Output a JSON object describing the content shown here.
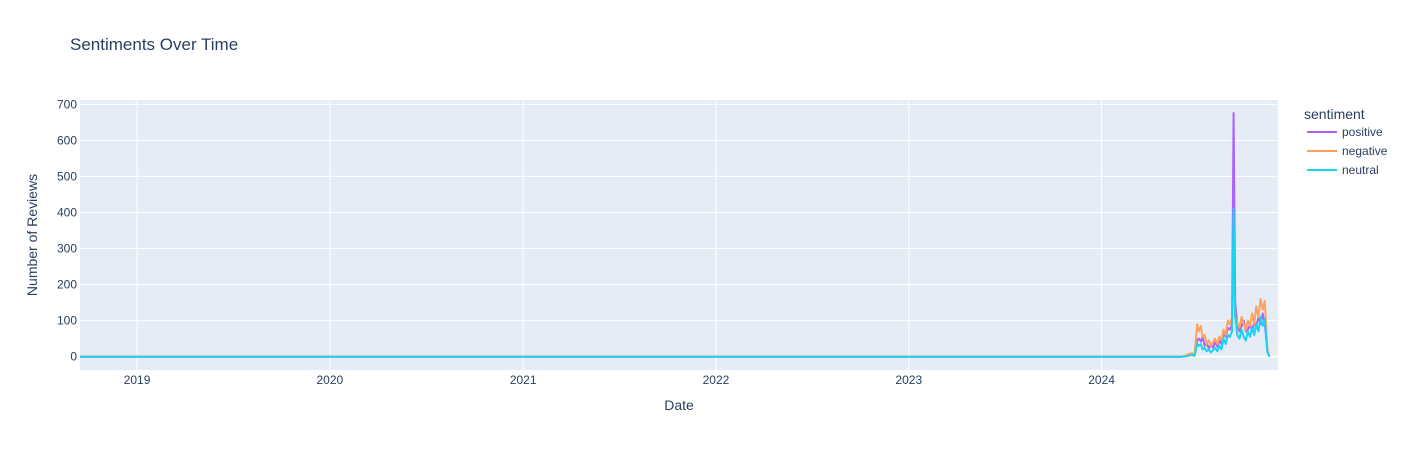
{
  "chart_data": {
    "type": "line",
    "title": "Sentiments Over Time",
    "xlabel": "Date",
    "ylabel": "Number of Reviews",
    "x_range": [
      "2018-09-15",
      "2024-11-30"
    ],
    "ylim": [
      -37,
      712
    ],
    "x_ticks": [
      {
        "date": "2019-01-01",
        "label": "2019"
      },
      {
        "date": "2020-01-01",
        "label": "2020"
      },
      {
        "date": "2021-01-01",
        "label": "2021"
      },
      {
        "date": "2022-01-01",
        "label": "2022"
      },
      {
        "date": "2023-01-01",
        "label": "2023"
      },
      {
        "date": "2024-01-01",
        "label": "2024"
      }
    ],
    "y_ticks": [
      0,
      100,
      200,
      300,
      400,
      500,
      600,
      700
    ],
    "grid": true,
    "plot_bg": "#e5ecf6",
    "legend": {
      "title": "sentiment",
      "placement": "right"
    },
    "series": [
      {
        "name": "positive",
        "color": "#ab63fa",
        "points": [
          [
            "2018-09-15",
            0
          ],
          [
            "2024-06-01",
            0
          ],
          [
            "2024-06-10",
            2
          ],
          [
            "2024-06-20",
            8
          ],
          [
            "2024-06-25",
            3
          ],
          [
            "2024-06-30",
            45
          ],
          [
            "2024-07-03",
            50
          ],
          [
            "2024-07-07",
            42
          ],
          [
            "2024-07-10",
            55
          ],
          [
            "2024-07-14",
            30
          ],
          [
            "2024-07-18",
            38
          ],
          [
            "2024-07-22",
            22
          ],
          [
            "2024-07-26",
            35
          ],
          [
            "2024-07-30",
            25
          ],
          [
            "2024-08-03",
            40
          ],
          [
            "2024-08-07",
            28
          ],
          [
            "2024-08-11",
            45
          ],
          [
            "2024-08-15",
            35
          ],
          [
            "2024-08-19",
            65
          ],
          [
            "2024-08-23",
            55
          ],
          [
            "2024-08-27",
            80
          ],
          [
            "2024-08-31",
            75
          ],
          [
            "2024-09-04",
            90
          ],
          [
            "2024-09-07",
            676
          ],
          [
            "2024-09-10",
            150
          ],
          [
            "2024-09-14",
            90
          ],
          [
            "2024-09-18",
            70
          ],
          [
            "2024-09-22",
            85
          ],
          [
            "2024-09-26",
            100
          ],
          [
            "2024-09-30",
            70
          ],
          [
            "2024-10-04",
            75
          ],
          [
            "2024-10-08",
            90
          ],
          [
            "2024-10-12",
            70
          ],
          [
            "2024-10-16",
            95
          ],
          [
            "2024-10-20",
            85
          ],
          [
            "2024-10-24",
            110
          ],
          [
            "2024-10-28",
            90
          ],
          [
            "2024-11-01",
            120
          ],
          [
            "2024-11-05",
            90
          ],
          [
            "2024-11-10",
            15
          ],
          [
            "2024-11-14",
            0
          ]
        ]
      },
      {
        "name": "negative",
        "color": "#ffa15a",
        "points": [
          [
            "2018-09-15",
            0
          ],
          [
            "2018-12-01",
            0
          ],
          [
            "2024-06-01",
            0
          ],
          [
            "2024-06-10",
            5
          ],
          [
            "2024-06-20",
            10
          ],
          [
            "2024-06-25",
            4
          ],
          [
            "2024-06-30",
            90
          ],
          [
            "2024-07-03",
            70
          ],
          [
            "2024-07-07",
            85
          ],
          [
            "2024-07-10",
            55
          ],
          [
            "2024-07-14",
            60
          ],
          [
            "2024-07-18",
            35
          ],
          [
            "2024-07-22",
            45
          ],
          [
            "2024-07-26",
            30
          ],
          [
            "2024-07-30",
            40
          ],
          [
            "2024-08-03",
            50
          ],
          [
            "2024-08-07",
            35
          ],
          [
            "2024-08-11",
            55
          ],
          [
            "2024-08-15",
            45
          ],
          [
            "2024-08-19",
            75
          ],
          [
            "2024-08-23",
            60
          ],
          [
            "2024-08-27",
            100
          ],
          [
            "2024-08-31",
            90
          ],
          [
            "2024-09-04",
            110
          ],
          [
            "2024-09-07",
            250
          ],
          [
            "2024-09-10",
            110
          ],
          [
            "2024-09-14",
            95
          ],
          [
            "2024-09-18",
            80
          ],
          [
            "2024-09-22",
            110
          ],
          [
            "2024-09-26",
            90
          ],
          [
            "2024-09-30",
            75
          ],
          [
            "2024-10-04",
            100
          ],
          [
            "2024-10-08",
            85
          ],
          [
            "2024-10-12",
            120
          ],
          [
            "2024-10-16",
            90
          ],
          [
            "2024-10-20",
            140
          ],
          [
            "2024-10-24",
            110
          ],
          [
            "2024-10-28",
            160
          ],
          [
            "2024-11-01",
            130
          ],
          [
            "2024-11-05",
            155
          ],
          [
            "2024-11-10",
            20
          ],
          [
            "2024-11-14",
            0
          ]
        ]
      },
      {
        "name": "neutral",
        "color": "#19d3f3",
        "points": [
          [
            "2018-09-15",
            0
          ],
          [
            "2024-06-01",
            0
          ],
          [
            "2024-06-10",
            1
          ],
          [
            "2024-06-20",
            5
          ],
          [
            "2024-06-25",
            2
          ],
          [
            "2024-06-30",
            35
          ],
          [
            "2024-07-03",
            30
          ],
          [
            "2024-07-07",
            35
          ],
          [
            "2024-07-10",
            20
          ],
          [
            "2024-07-14",
            25
          ],
          [
            "2024-07-18",
            15
          ],
          [
            "2024-07-22",
            20
          ],
          [
            "2024-07-26",
            12
          ],
          [
            "2024-07-30",
            18
          ],
          [
            "2024-08-03",
            25
          ],
          [
            "2024-08-07",
            15
          ],
          [
            "2024-08-11",
            30
          ],
          [
            "2024-08-15",
            20
          ],
          [
            "2024-08-19",
            50
          ],
          [
            "2024-08-23",
            35
          ],
          [
            "2024-08-27",
            60
          ],
          [
            "2024-08-31",
            55
          ],
          [
            "2024-09-04",
            70
          ],
          [
            "2024-09-07",
            410
          ],
          [
            "2024-09-10",
            110
          ],
          [
            "2024-09-14",
            60
          ],
          [
            "2024-09-18",
            50
          ],
          [
            "2024-09-22",
            75
          ],
          [
            "2024-09-26",
            55
          ],
          [
            "2024-09-30",
            45
          ],
          [
            "2024-10-04",
            70
          ],
          [
            "2024-10-08",
            55
          ],
          [
            "2024-10-12",
            80
          ],
          [
            "2024-10-16",
            60
          ],
          [
            "2024-10-20",
            90
          ],
          [
            "2024-10-24",
            70
          ],
          [
            "2024-10-28",
            110
          ],
          [
            "2024-11-01",
            85
          ],
          [
            "2024-11-05",
            105
          ],
          [
            "2024-11-10",
            12
          ],
          [
            "2024-11-14",
            0
          ]
        ]
      }
    ]
  }
}
